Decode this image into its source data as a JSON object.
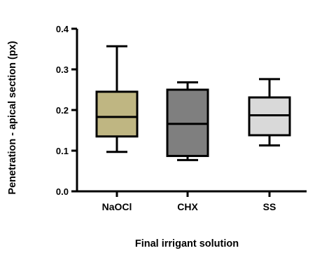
{
  "chart_data": {
    "type": "box",
    "title": "",
    "xlabel": "Final irrigant solution",
    "ylabel": "Penetration - apical section (px)",
    "ylim": [
      0.0,
      0.4
    ],
    "yticks": [
      "0.0",
      "0.1",
      "0.2",
      "0.3",
      "0.4"
    ],
    "categories": [
      "NaOCl",
      "CHX",
      "SS"
    ],
    "boxes": [
      {
        "name": "NaOCl",
        "min": 0.097,
        "q1": 0.135,
        "median": 0.183,
        "q3": 0.245,
        "max": 0.357,
        "color": "#BFB682"
      },
      {
        "name": "CHX",
        "min": 0.077,
        "q1": 0.087,
        "median": 0.166,
        "q3": 0.25,
        "max": 0.268,
        "color": "#7F7F7F"
      },
      {
        "name": "SS",
        "min": 0.113,
        "q1": 0.138,
        "median": 0.187,
        "q3": 0.231,
        "max": 0.276,
        "color": "#D9D9D9"
      }
    ],
    "grid": false,
    "legend": "none"
  }
}
